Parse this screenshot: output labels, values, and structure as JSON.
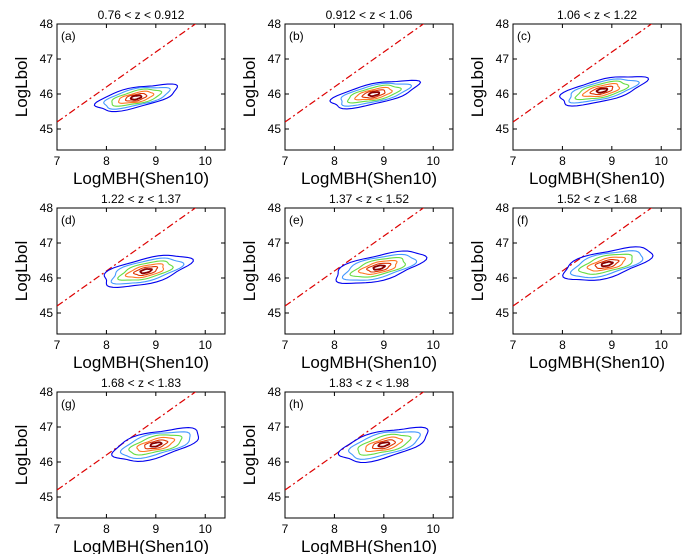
{
  "figure": {
    "colors": {
      "axes": "#000000",
      "eddington_line": "#dd0000",
      "contour_levels": [
        "#0000ee",
        "#4499ff",
        "#66dd44",
        "#ff7722",
        "#dd3300",
        "#880000"
      ]
    }
  },
  "chart_data": [
    {
      "type": "contour",
      "panel_label": "(a)",
      "title": "0.76 < z < 0.912",
      "xlabel": "LogMBH(Shen10)",
      "ylabel": "LogLbol",
      "xlim": [
        7,
        10.4
      ],
      "ylim": [
        44.4,
        48
      ],
      "xticks": [
        7,
        8,
        9,
        10
      ],
      "yticks": [
        45,
        46,
        47,
        48
      ],
      "reference_line": {
        "style": "dash-dot",
        "from": [
          7,
          45.2
        ],
        "to": [
          10.4,
          48.6
        ]
      },
      "contours": {
        "center": [
          8.6,
          45.9
        ],
        "semi_axes": [
          [
            0.93,
            0.28
          ],
          [
            0.75,
            0.23
          ],
          [
            0.57,
            0.18
          ],
          [
            0.4,
            0.13
          ],
          [
            0.24,
            0.09
          ],
          [
            0.12,
            0.05
          ]
        ],
        "angle_deg": 30
      }
    },
    {
      "type": "contour",
      "panel_label": "(b)",
      "title": "0.912 < z < 1.06",
      "xlabel": "LogMBH(Shen10)",
      "ylabel": "LogLbol",
      "xlim": [
        7,
        10.4
      ],
      "ylim": [
        44.4,
        48
      ],
      "xticks": [
        7,
        8,
        9,
        10
      ],
      "yticks": [
        45,
        46,
        47,
        48
      ],
      "reference_line": {
        "style": "dash-dot",
        "from": [
          7,
          45.2
        ],
        "to": [
          10.4,
          48.6
        ]
      },
      "contours": {
        "center": [
          8.8,
          46.0
        ],
        "semi_axes": [
          [
            1.0,
            0.28
          ],
          [
            0.8,
            0.23
          ],
          [
            0.6,
            0.18
          ],
          [
            0.42,
            0.13
          ],
          [
            0.26,
            0.09
          ],
          [
            0.12,
            0.05
          ]
        ],
        "angle_deg": 30
      }
    },
    {
      "type": "contour",
      "panel_label": "(c)",
      "title": "1.06 < z < 1.22",
      "xlabel": "LogMBH(Shen10)",
      "ylabel": "LogLbol",
      "xlim": [
        7,
        10.4
      ],
      "ylim": [
        44.4,
        48
      ],
      "xticks": [
        7,
        8,
        9,
        10
      ],
      "yticks": [
        45,
        46,
        47,
        48
      ],
      "reference_line": {
        "style": "dash-dot",
        "from": [
          7,
          45.2
        ],
        "to": [
          10.4,
          48.6
        ]
      },
      "contours": {
        "center": [
          8.8,
          46.1
        ],
        "semi_axes": [
          [
            1.0,
            0.3
          ],
          [
            0.8,
            0.24
          ],
          [
            0.6,
            0.19
          ],
          [
            0.42,
            0.14
          ],
          [
            0.26,
            0.09
          ],
          [
            0.12,
            0.05
          ]
        ],
        "angle_deg": 32
      }
    },
    {
      "type": "contour",
      "panel_label": "(d)",
      "title": "1.22 < z < 1.37",
      "xlabel": "LogMBH(Shen10)",
      "ylabel": "LogLbol",
      "xlim": [
        7,
        10.4
      ],
      "ylim": [
        44.4,
        48
      ],
      "xticks": [
        7,
        8,
        9,
        10
      ],
      "yticks": [
        45,
        46,
        47,
        48
      ],
      "reference_line": {
        "style": "dash-dot",
        "from": [
          7,
          45.2
        ],
        "to": [
          10.4,
          48.6
        ]
      },
      "contours": {
        "center": [
          8.8,
          46.2
        ],
        "semi_axes": [
          [
            1.02,
            0.35
          ],
          [
            0.82,
            0.28
          ],
          [
            0.62,
            0.21
          ],
          [
            0.44,
            0.15
          ],
          [
            0.27,
            0.1
          ],
          [
            0.13,
            0.05
          ]
        ],
        "angle_deg": 33
      }
    },
    {
      "type": "contour",
      "panel_label": "(e)",
      "title": "1.37 < z < 1.52",
      "xlabel": "LogMBH(Shen10)",
      "ylabel": "LogLbol",
      "xlim": [
        7,
        10.4
      ],
      "ylim": [
        44.4,
        48
      ],
      "xticks": [
        7,
        8,
        9,
        10
      ],
      "yticks": [
        45,
        46,
        47,
        48
      ],
      "reference_line": {
        "style": "dash-dot",
        "from": [
          7,
          45.2
        ],
        "to": [
          10.4,
          48.6
        ]
      },
      "contours": {
        "center": [
          8.9,
          46.3
        ],
        "semi_axes": [
          [
            1.05,
            0.35
          ],
          [
            0.84,
            0.28
          ],
          [
            0.63,
            0.21
          ],
          [
            0.44,
            0.15
          ],
          [
            0.27,
            0.1
          ],
          [
            0.13,
            0.05
          ]
        ],
        "angle_deg": 33
      }
    },
    {
      "type": "contour",
      "panel_label": "(f)",
      "title": "1.52 < z < 1.68",
      "xlabel": "LogMBH(Shen10)",
      "ylabel": "LogLbol",
      "xlim": [
        7,
        10.4
      ],
      "ylim": [
        44.4,
        48
      ],
      "xticks": [
        7,
        8,
        9,
        10
      ],
      "yticks": [
        45,
        46,
        47,
        48
      ],
      "reference_line": {
        "style": "dash-dot",
        "from": [
          7,
          45.2
        ],
        "to": [
          10.4,
          48.6
        ]
      },
      "contours": {
        "center": [
          8.9,
          46.4
        ],
        "semi_axes": [
          [
            1.05,
            0.36
          ],
          [
            0.84,
            0.29
          ],
          [
            0.63,
            0.22
          ],
          [
            0.44,
            0.15
          ],
          [
            0.27,
            0.1
          ],
          [
            0.13,
            0.05
          ]
        ],
        "angle_deg": 34
      }
    },
    {
      "type": "contour",
      "panel_label": "(g)",
      "title": "1.68 < z < 1.83",
      "xlabel": "LogMBH(Shen10)",
      "ylabel": "LogLbol",
      "xlim": [
        7,
        10.4
      ],
      "ylim": [
        44.4,
        48
      ],
      "xticks": [
        7,
        8,
        9,
        10
      ],
      "yticks": [
        45,
        46,
        47,
        48
      ],
      "reference_line": {
        "style": "dash-dot",
        "from": [
          7,
          45.2
        ],
        "to": [
          10.4,
          48.6
        ]
      },
      "contours": {
        "center": [
          9.0,
          46.5
        ],
        "semi_axes": [
          [
            1.02,
            0.36
          ],
          [
            0.82,
            0.29
          ],
          [
            0.62,
            0.22
          ],
          [
            0.44,
            0.15
          ],
          [
            0.27,
            0.1
          ],
          [
            0.13,
            0.05
          ]
        ],
        "angle_deg": 34
      }
    },
    {
      "type": "contour",
      "panel_label": "(h)",
      "title": "1.83 < z < 1.98",
      "xlabel": "LogMBH(Shen10)",
      "ylabel": "LogLbol",
      "xlim": [
        7,
        10.4
      ],
      "ylim": [
        44.4,
        48
      ],
      "xticks": [
        7,
        8,
        9,
        10
      ],
      "yticks": [
        45,
        46,
        47,
        48
      ],
      "reference_line": {
        "style": "dash-dot",
        "from": [
          7,
          45.2
        ],
        "to": [
          10.4,
          48.6
        ]
      },
      "contours": {
        "center": [
          9.0,
          46.5
        ],
        "semi_axes": [
          [
            1.05,
            0.37
          ],
          [
            0.84,
            0.3
          ],
          [
            0.63,
            0.22
          ],
          [
            0.44,
            0.15
          ],
          [
            0.27,
            0.1
          ],
          [
            0.13,
            0.05
          ]
        ],
        "angle_deg": 35
      }
    }
  ]
}
